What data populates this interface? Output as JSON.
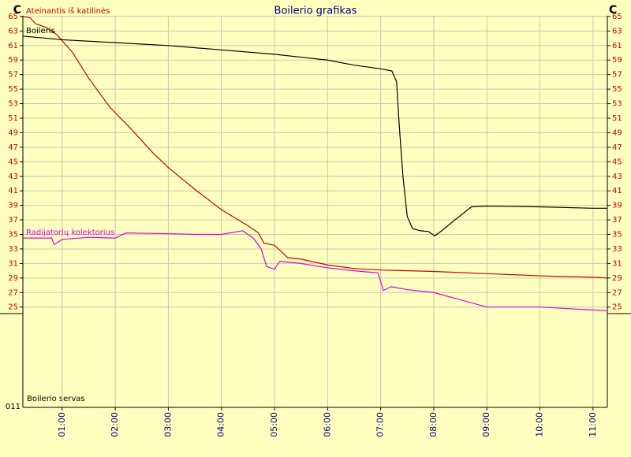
{
  "chart_data": {
    "type": "line",
    "title": "Boilerio grafikas",
    "y_unit": "C",
    "xlim": [
      0.26,
      11.27
    ],
    "xticks": [
      {
        "value": 1,
        "label": "01:00"
      },
      {
        "value": 2,
        "label": "02:00"
      },
      {
        "value": 3,
        "label": "03:00"
      },
      {
        "value": 4,
        "label": "04:00"
      },
      {
        "value": 5,
        "label": "05:00"
      },
      {
        "value": 6,
        "label": "06:00"
      },
      {
        "value": 7,
        "label": "07:00"
      },
      {
        "value": 8,
        "label": "08:00"
      },
      {
        "value": 9,
        "label": "09:00"
      },
      {
        "value": 10,
        "label": "10:00"
      },
      {
        "value": 11,
        "label": "11:00"
      }
    ],
    "ylim": [
      24.1,
      65.1
    ],
    "yticks": [
      25,
      27,
      29,
      31,
      33,
      35,
      37,
      39,
      41,
      43,
      45,
      47,
      49,
      51,
      53,
      55,
      57,
      59,
      61,
      63,
      65
    ],
    "grid": true,
    "series": [
      {
        "name": "Ateinantis iš katilinės",
        "color": "#cc0000",
        "x": [
          0.26,
          0.4,
          0.5,
          0.7,
          0.9,
          1.2,
          1.5,
          1.9,
          2.3,
          2.7,
          3.0,
          3.5,
          4.0,
          4.5,
          4.7,
          4.8,
          5.0,
          5.15,
          5.25,
          5.5,
          6.0,
          6.5,
          7.0,
          8.0,
          9.0,
          10.0,
          11.0,
          11.27
        ],
        "values": [
          65,
          64.8,
          64.0,
          63.5,
          62.5,
          60,
          56.5,
          52.5,
          49.5,
          46.3,
          44.2,
          41.2,
          38.4,
          36.2,
          35.2,
          33.8,
          33.5,
          32.5,
          31.8,
          31.6,
          30.8,
          30.3,
          30.1,
          29.9,
          29.6,
          29.3,
          29.1,
          29.0
        ]
      },
      {
        "name": "Boileris",
        "color": "#000000",
        "x": [
          0.26,
          1,
          2,
          3,
          4,
          5,
          5.5,
          6,
          6.5,
          7.0,
          7.21,
          7.3,
          7.35,
          7.42,
          7.5,
          7.6,
          7.75,
          7.9,
          8.02,
          8.15,
          8.4,
          8.71,
          9,
          10,
          11,
          11.27
        ],
        "values": [
          62.3,
          61.8,
          61.4,
          61.0,
          60.4,
          59.8,
          59.4,
          59.0,
          58.3,
          57.8,
          57.5,
          56,
          50,
          43,
          37.5,
          35.8,
          35.5,
          35.4,
          34.8,
          35.5,
          37,
          38.8,
          38.9,
          38.8,
          38.6,
          38.6
        ]
      },
      {
        "name": "Radijatorių kolektorius",
        "color": "#e000e0",
        "x": [
          0.26,
          0.8,
          0.85,
          1.0,
          1.5,
          2.0,
          2.2,
          3.0,
          3.5,
          4.0,
          4.4,
          4.6,
          4.75,
          4.85,
          5.0,
          5.1,
          5.5,
          6.0,
          6.5,
          6.95,
          7.05,
          7.2,
          7.5,
          8.0,
          8.5,
          9.0,
          9.5,
          10.0,
          10.5,
          11.0,
          11.27
        ],
        "values": [
          34.5,
          34.5,
          33.6,
          34.3,
          34.6,
          34.5,
          35.2,
          35.1,
          35.0,
          35.0,
          35.5,
          34.5,
          33.0,
          30.6,
          30.2,
          31.3,
          31.0,
          30.4,
          30.0,
          29.7,
          27.3,
          27.8,
          27.4,
          27.0,
          26.0,
          25.0,
          25.0,
          25.0,
          24.8,
          24.6,
          24.5
        ]
      }
    ],
    "lower_panel": {
      "label": "Boilerio servas",
      "tick_label": "011"
    }
  }
}
